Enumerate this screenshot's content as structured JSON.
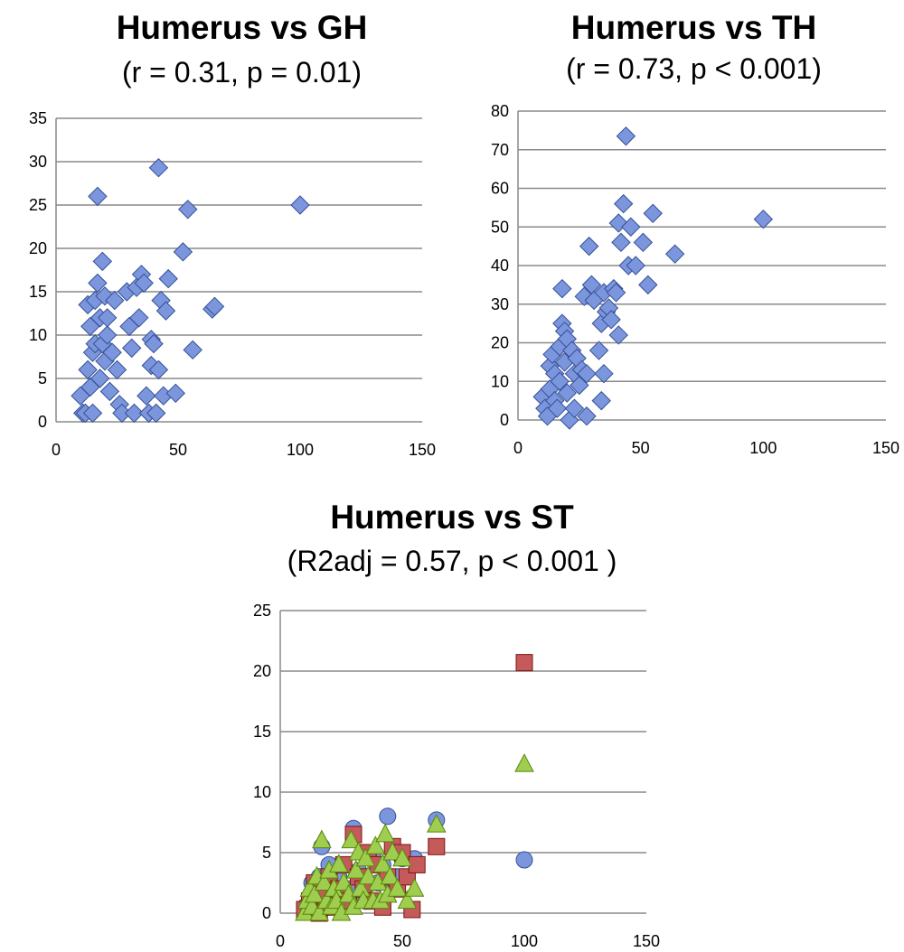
{
  "chart_data": [
    {
      "type": "scatter",
      "title": "Humerus vs GH",
      "subtitle": "(r = 0.31, p = 0.01)",
      "xlabel": "",
      "ylabel": "",
      "xlim": [
        0,
        150
      ],
      "ylim": [
        0,
        35
      ],
      "xticks": [
        0,
        50,
        100,
        150
      ],
      "yticks": [
        0,
        5,
        10,
        15,
        20,
        25,
        30,
        35
      ],
      "grid": "horizontal",
      "series": [
        {
          "marker": "diamond",
          "color": "#7b96dc",
          "points": [
            [
              10,
              3
            ],
            [
              11,
              1
            ],
            [
              12,
              1
            ],
            [
              13,
              13.5
            ],
            [
              13,
              6
            ],
            [
              14,
              4
            ],
            [
              14,
              11
            ],
            [
              15,
              8
            ],
            [
              15,
              1
            ],
            [
              16,
              9
            ],
            [
              16,
              14
            ],
            [
              17,
              26
            ],
            [
              17,
              16
            ],
            [
              18,
              12
            ],
            [
              18,
              5
            ],
            [
              19,
              18.5
            ],
            [
              19,
              9
            ],
            [
              20,
              14.5
            ],
            [
              20,
              7
            ],
            [
              21,
              10
            ],
            [
              21,
              12
            ],
            [
              22,
              3.5
            ],
            [
              23,
              8
            ],
            [
              24,
              14
            ],
            [
              25,
              6
            ],
            [
              26,
              2
            ],
            [
              27,
              1
            ],
            [
              29,
              15
            ],
            [
              30,
              11
            ],
            [
              31,
              8.5
            ],
            [
              32,
              1
            ],
            [
              33,
              15.5
            ],
            [
              34,
              12
            ],
            [
              35,
              17
            ],
            [
              36,
              16
            ],
            [
              37,
              3
            ],
            [
              38,
              1
            ],
            [
              39,
              9.5
            ],
            [
              39,
              6.5
            ],
            [
              40,
              9
            ],
            [
              41,
              1
            ],
            [
              42,
              29.3
            ],
            [
              42,
              6
            ],
            [
              43,
              14
            ],
            [
              44,
              3
            ],
            [
              45,
              12.8
            ],
            [
              46,
              16.5
            ],
            [
              49,
              3.3
            ],
            [
              52,
              19.6
            ],
            [
              54,
              24.5
            ],
            [
              56,
              8.3
            ],
            [
              64,
              13
            ],
            [
              65,
              13.3
            ],
            [
              100,
              25
            ]
          ]
        }
      ]
    },
    {
      "type": "scatter",
      "title": "Humerus vs TH",
      "subtitle": "(r = 0.73, p < 0.001)",
      "xlabel": "",
      "ylabel": "",
      "xlim": [
        0,
        150
      ],
      "ylim": [
        0,
        80
      ],
      "xticks": [
        0,
        50,
        100,
        150
      ],
      "yticks": [
        0,
        10,
        20,
        30,
        40,
        50,
        60,
        70,
        80
      ],
      "grid": "horizontal",
      "series": [
        {
          "marker": "diamond",
          "color": "#7b96dc",
          "points": [
            [
              10,
              6
            ],
            [
              11,
              3
            ],
            [
              12,
              1
            ],
            [
              13,
              14
            ],
            [
              13,
              8
            ],
            [
              14,
              17
            ],
            [
              15,
              12
            ],
            [
              15,
              5
            ],
            [
              16,
              3
            ],
            [
              17,
              19
            ],
            [
              17,
              10
            ],
            [
              18,
              25
            ],
            [
              18,
              34
            ],
            [
              19,
              23
            ],
            [
              19,
              15
            ],
            [
              20,
              21
            ],
            [
              20,
              7
            ],
            [
              21,
              0
            ],
            [
              22,
              18
            ],
            [
              23,
              12
            ],
            [
              23,
              3
            ],
            [
              24,
              16
            ],
            [
              25,
              9
            ],
            [
              26,
              13
            ],
            [
              27,
              32
            ],
            [
              28,
              12
            ],
            [
              28,
              1
            ],
            [
              29,
              45
            ],
            [
              30,
              35
            ],
            [
              31,
              31
            ],
            [
              33,
              18
            ],
            [
              34,
              25
            ],
            [
              34,
              5
            ],
            [
              35,
              33
            ],
            [
              35,
              12
            ],
            [
              36,
              28
            ],
            [
              37,
              29
            ],
            [
              38,
              26
            ],
            [
              39,
              34
            ],
            [
              40,
              33
            ],
            [
              41,
              51
            ],
            [
              41,
              22
            ],
            [
              42,
              46
            ],
            [
              43,
              56
            ],
            [
              44,
              73.5
            ],
            [
              45,
              40
            ],
            [
              46,
              50
            ],
            [
              48,
              40
            ],
            [
              51,
              46
            ],
            [
              53,
              35
            ],
            [
              55,
              53.5
            ],
            [
              64,
              43
            ],
            [
              100,
              52
            ]
          ]
        }
      ]
    },
    {
      "type": "scatter",
      "title": "Humerus vs ST",
      "subtitle": "(R2adj = 0.57, p < 0.001 )",
      "xlabel": "",
      "ylabel": "",
      "xlim": [
        0,
        150
      ],
      "ylim": [
        0,
        25
      ],
      "xticks": [
        0,
        50,
        100,
        150
      ],
      "yticks": [
        0,
        5,
        10,
        15,
        20,
        25
      ],
      "grid": "horizontal",
      "series": [
        {
          "marker": "circle",
          "color": "#7b96dc",
          "points": [
            [
              10,
              0.5
            ],
            [
              12,
              1
            ],
            [
              13,
              2.5
            ],
            [
              14,
              1.5
            ],
            [
              16,
              3
            ],
            [
              17,
              5.5
            ],
            [
              19,
              0.5
            ],
            [
              20,
              4
            ],
            [
              22,
              2
            ],
            [
              24,
              3
            ],
            [
              26,
              1
            ],
            [
              28,
              2
            ],
            [
              30,
              7
            ],
            [
              32,
              3.5
            ],
            [
              35,
              1
            ],
            [
              38,
              5
            ],
            [
              40,
              2.5
            ],
            [
              42,
              4
            ],
            [
              44,
              8
            ],
            [
              46,
              2
            ],
            [
              48,
              3
            ],
            [
              50,
              4.5
            ],
            [
              55,
              4.5
            ],
            [
              64,
              7.7
            ],
            [
              100,
              4.4
            ]
          ]
        },
        {
          "marker": "square",
          "color": "#c45a5a",
          "points": [
            [
              10,
              0.3
            ],
            [
              12,
              1
            ],
            [
              14,
              2.5
            ],
            [
              16,
              0
            ],
            [
              18,
              1.5
            ],
            [
              20,
              3
            ],
            [
              22,
              0.5
            ],
            [
              24,
              2
            ],
            [
              26,
              4
            ],
            [
              28,
              1
            ],
            [
              30,
              6.5
            ],
            [
              32,
              3
            ],
            [
              34,
              2
            ],
            [
              36,
              5
            ],
            [
              38,
              1
            ],
            [
              40,
              4
            ],
            [
              42,
              0.5
            ],
            [
              44,
              3
            ],
            [
              46,
              5.5
            ],
            [
              48,
              2
            ],
            [
              50,
              5
            ],
            [
              52,
              3
            ],
            [
              54,
              0.3
            ],
            [
              56,
              4
            ],
            [
              64,
              5.5
            ],
            [
              100,
              20.7
            ]
          ]
        },
        {
          "marker": "triangle",
          "color": "#9fcd4f",
          "points": [
            [
              10,
              0
            ],
            [
              11,
              1
            ],
            [
              12,
              2
            ],
            [
              13,
              0.5
            ],
            [
              14,
              1.5
            ],
            [
              15,
              3
            ],
            [
              16,
              0
            ],
            [
              17,
              6
            ],
            [
              18,
              2.5
            ],
            [
              19,
              1
            ],
            [
              20,
              3.5
            ],
            [
              21,
              0.5
            ],
            [
              22,
              2
            ],
            [
              23,
              1
            ],
            [
              24,
              4
            ],
            [
              25,
              0
            ],
            [
              26,
              2.5
            ],
            [
              28,
              1.5
            ],
            [
              29,
              6
            ],
            [
              30,
              0.5
            ],
            [
              31,
              3.5
            ],
            [
              32,
              5
            ],
            [
              33,
              2
            ],
            [
              34,
              1
            ],
            [
              35,
              4.5
            ],
            [
              36,
              3
            ],
            [
              38,
              1
            ],
            [
              39,
              5.5
            ],
            [
              40,
              2.5
            ],
            [
              41,
              1
            ],
            [
              42,
              4
            ],
            [
              43,
              6.5
            ],
            [
              44,
              1.5
            ],
            [
              45,
              3
            ],
            [
              46,
              5
            ],
            [
              48,
              2
            ],
            [
              50,
              4.5
            ],
            [
              52,
              1
            ],
            [
              55,
              2
            ],
            [
              64,
              7.3
            ],
            [
              100,
              12.3
            ]
          ]
        }
      ]
    }
  ]
}
